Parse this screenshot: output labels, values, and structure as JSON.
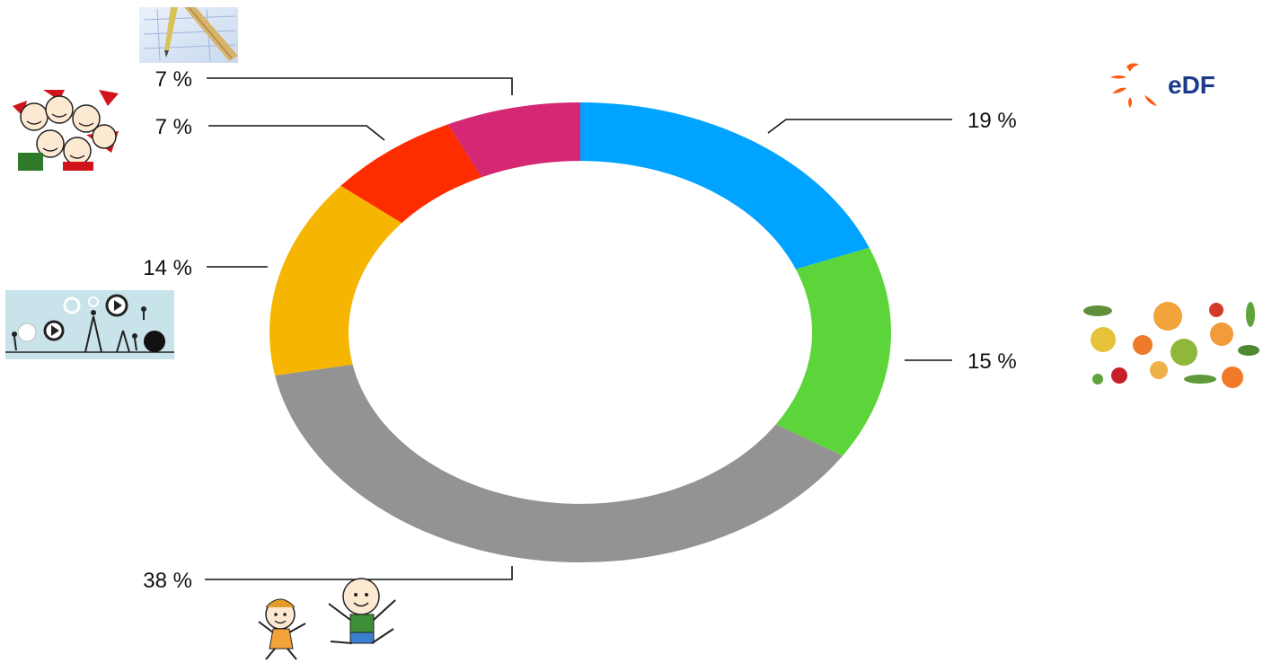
{
  "brand": {
    "wordmark": "eDF",
    "color": "#fe5815",
    "text_color": "#1b3a8c"
  },
  "chart_data": {
    "type": "pie",
    "style": "donut",
    "start_angle_deg": 0,
    "direction": "clockwise",
    "legend": "none",
    "slices": [
      {
        "value": 19,
        "label": "19 %",
        "color": "#00a3ff",
        "icon": "edf-logo"
      },
      {
        "value": 15,
        "label": "15 %",
        "color": "#5cd53a",
        "icon": "fruits-vegetables-icon"
      },
      {
        "value": 38,
        "label": "38 %",
        "color": "#939393",
        "icon": "children-icon"
      },
      {
        "value": 14,
        "label": "14 %",
        "color": "#f6b500",
        "icon": "gears-workers-icon"
      },
      {
        "value": 7,
        "label": "7 %",
        "color": "#fd2d00",
        "icon": "santa-crowd-icon"
      },
      {
        "value": 7,
        "label": "7 %",
        "color": "#d42774",
        "icon": "ruler-pencil-blueprint-icon"
      }
    ]
  }
}
